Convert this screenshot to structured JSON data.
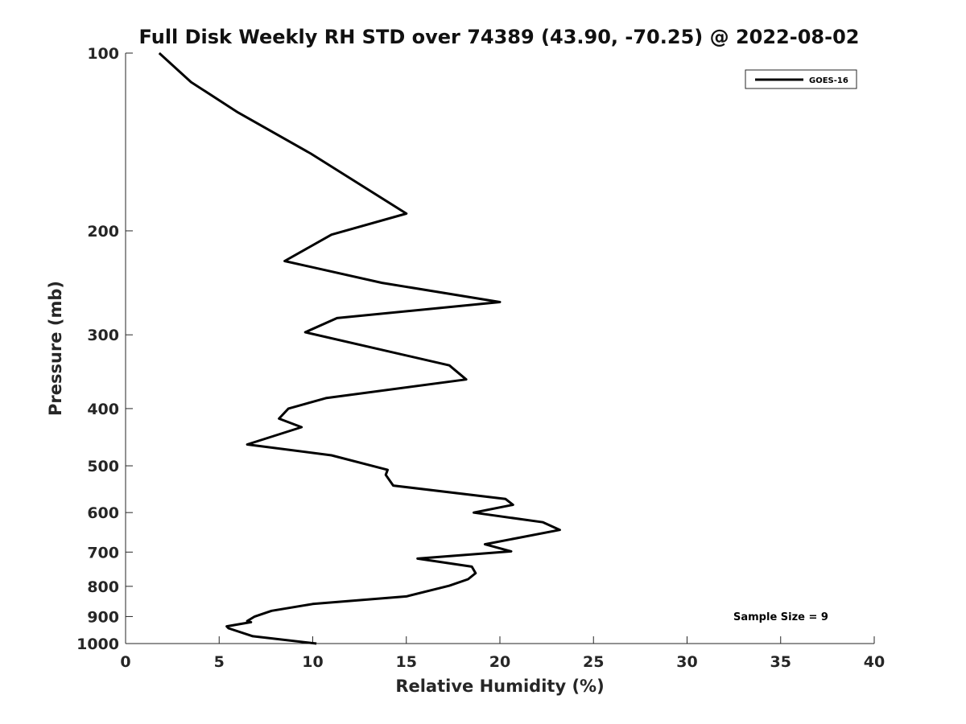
{
  "chart_data": {
    "type": "line",
    "title": "Full Disk Weekly RH STD over 74389 (43.90, -70.25) @ 2022-08-02",
    "xlabel": "Relative Humidity (%)",
    "ylabel": "Pressure (mb)",
    "xlim": [
      0,
      40
    ],
    "ylim": [
      100,
      1000
    ],
    "y_scale": "log",
    "y_reversed": true,
    "grid": false,
    "x_ticks": [
      0,
      5,
      10,
      15,
      20,
      25,
      30,
      35,
      40
    ],
    "x_tick_labels": [
      "0",
      "5",
      "10",
      "15",
      "20",
      "25",
      "30",
      "35",
      "40"
    ],
    "y_ticks": [
      100,
      200,
      300,
      400,
      500,
      600,
      700,
      800,
      900,
      1000
    ],
    "y_tick_labels": [
      "100",
      "200",
      "300",
      "400",
      "500",
      "600",
      "700",
      "800",
      "900",
      "1000"
    ],
    "legend_position": "top-right",
    "annotation": "Sample Size = 9",
    "line_color": "#000000",
    "series": [
      {
        "name": "GOES-16",
        "x": [
          1.8,
          3.5,
          6.0,
          9.9,
          15.0,
          11.0,
          8.5,
          13.7,
          20.0,
          11.3,
          9.6,
          17.3,
          18.2,
          10.7,
          8.7,
          8.2,
          9.4,
          6.5,
          11.0,
          14.0,
          13.9,
          14.3,
          20.3,
          20.7,
          18.6,
          22.3,
          23.2,
          20.9,
          19.2,
          20.6,
          15.6,
          18.5,
          18.7,
          18.3,
          17.3,
          15.0,
          10.0,
          7.8,
          6.9,
          6.5,
          6.7,
          5.4,
          5.5,
          6.8,
          10.2
        ],
        "y": [
          100,
          112,
          126,
          148,
          187,
          203,
          225,
          245,
          264,
          281,
          297,
          338,
          357,
          384,
          400,
          416,
          430,
          460,
          480,
          508,
          518,
          540,
          569,
          582,
          600,
          623,
          642,
          663,
          679,
          698,
          718,
          741,
          760,
          778,
          798,
          832,
          857,
          880,
          900,
          916,
          920,
          935,
          942,
          972,
          1000
        ]
      }
    ]
  }
}
